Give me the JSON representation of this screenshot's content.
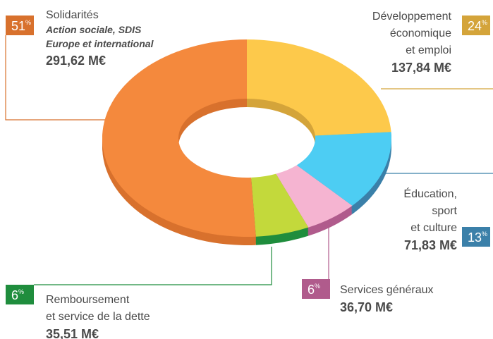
{
  "chart_data": {
    "type": "pie",
    "donut": true,
    "series": [
      {
        "name": [
          "Développement",
          "économique",
          "et emploi"
        ],
        "amount": "137,84 M€",
        "color": "#fdc94b",
        "badge_color": "#d4a43a"
      },
      {
        "name": [
          "Éducation,",
          "sport",
          "et culture"
        ],
        "amount": "71,83 M€",
        "color": "#4dcdf3",
        "badge_color": "#3b80a9"
      },
      {
        "name": [
          "Services généraux"
        ],
        "amount": "36,70 M€",
        "color": "#f5b4d1",
        "badge_color": "#b05b8c"
      },
      {
        "name": [
          "Remboursement",
          "et service de la dette"
        ],
        "amount": "35,51 M€",
        "color": "#c3d93b",
        "badge_color": "#1f8d3d"
      },
      {
        "name": [
          "Solidarités"
        ],
        "subtitle": [
          "Action sociale, SDIS",
          "Europe et international"
        ],
        "amount": "291,62 M€",
        "color": "#f4893d",
        "badge_color": "#d8712d"
      }
    ],
    "values": [
      24,
      13,
      6,
      6,
      51
    ],
    "value_labels": [
      "24%",
      "13%",
      "6%",
      "6%",
      "51%"
    ]
  }
}
